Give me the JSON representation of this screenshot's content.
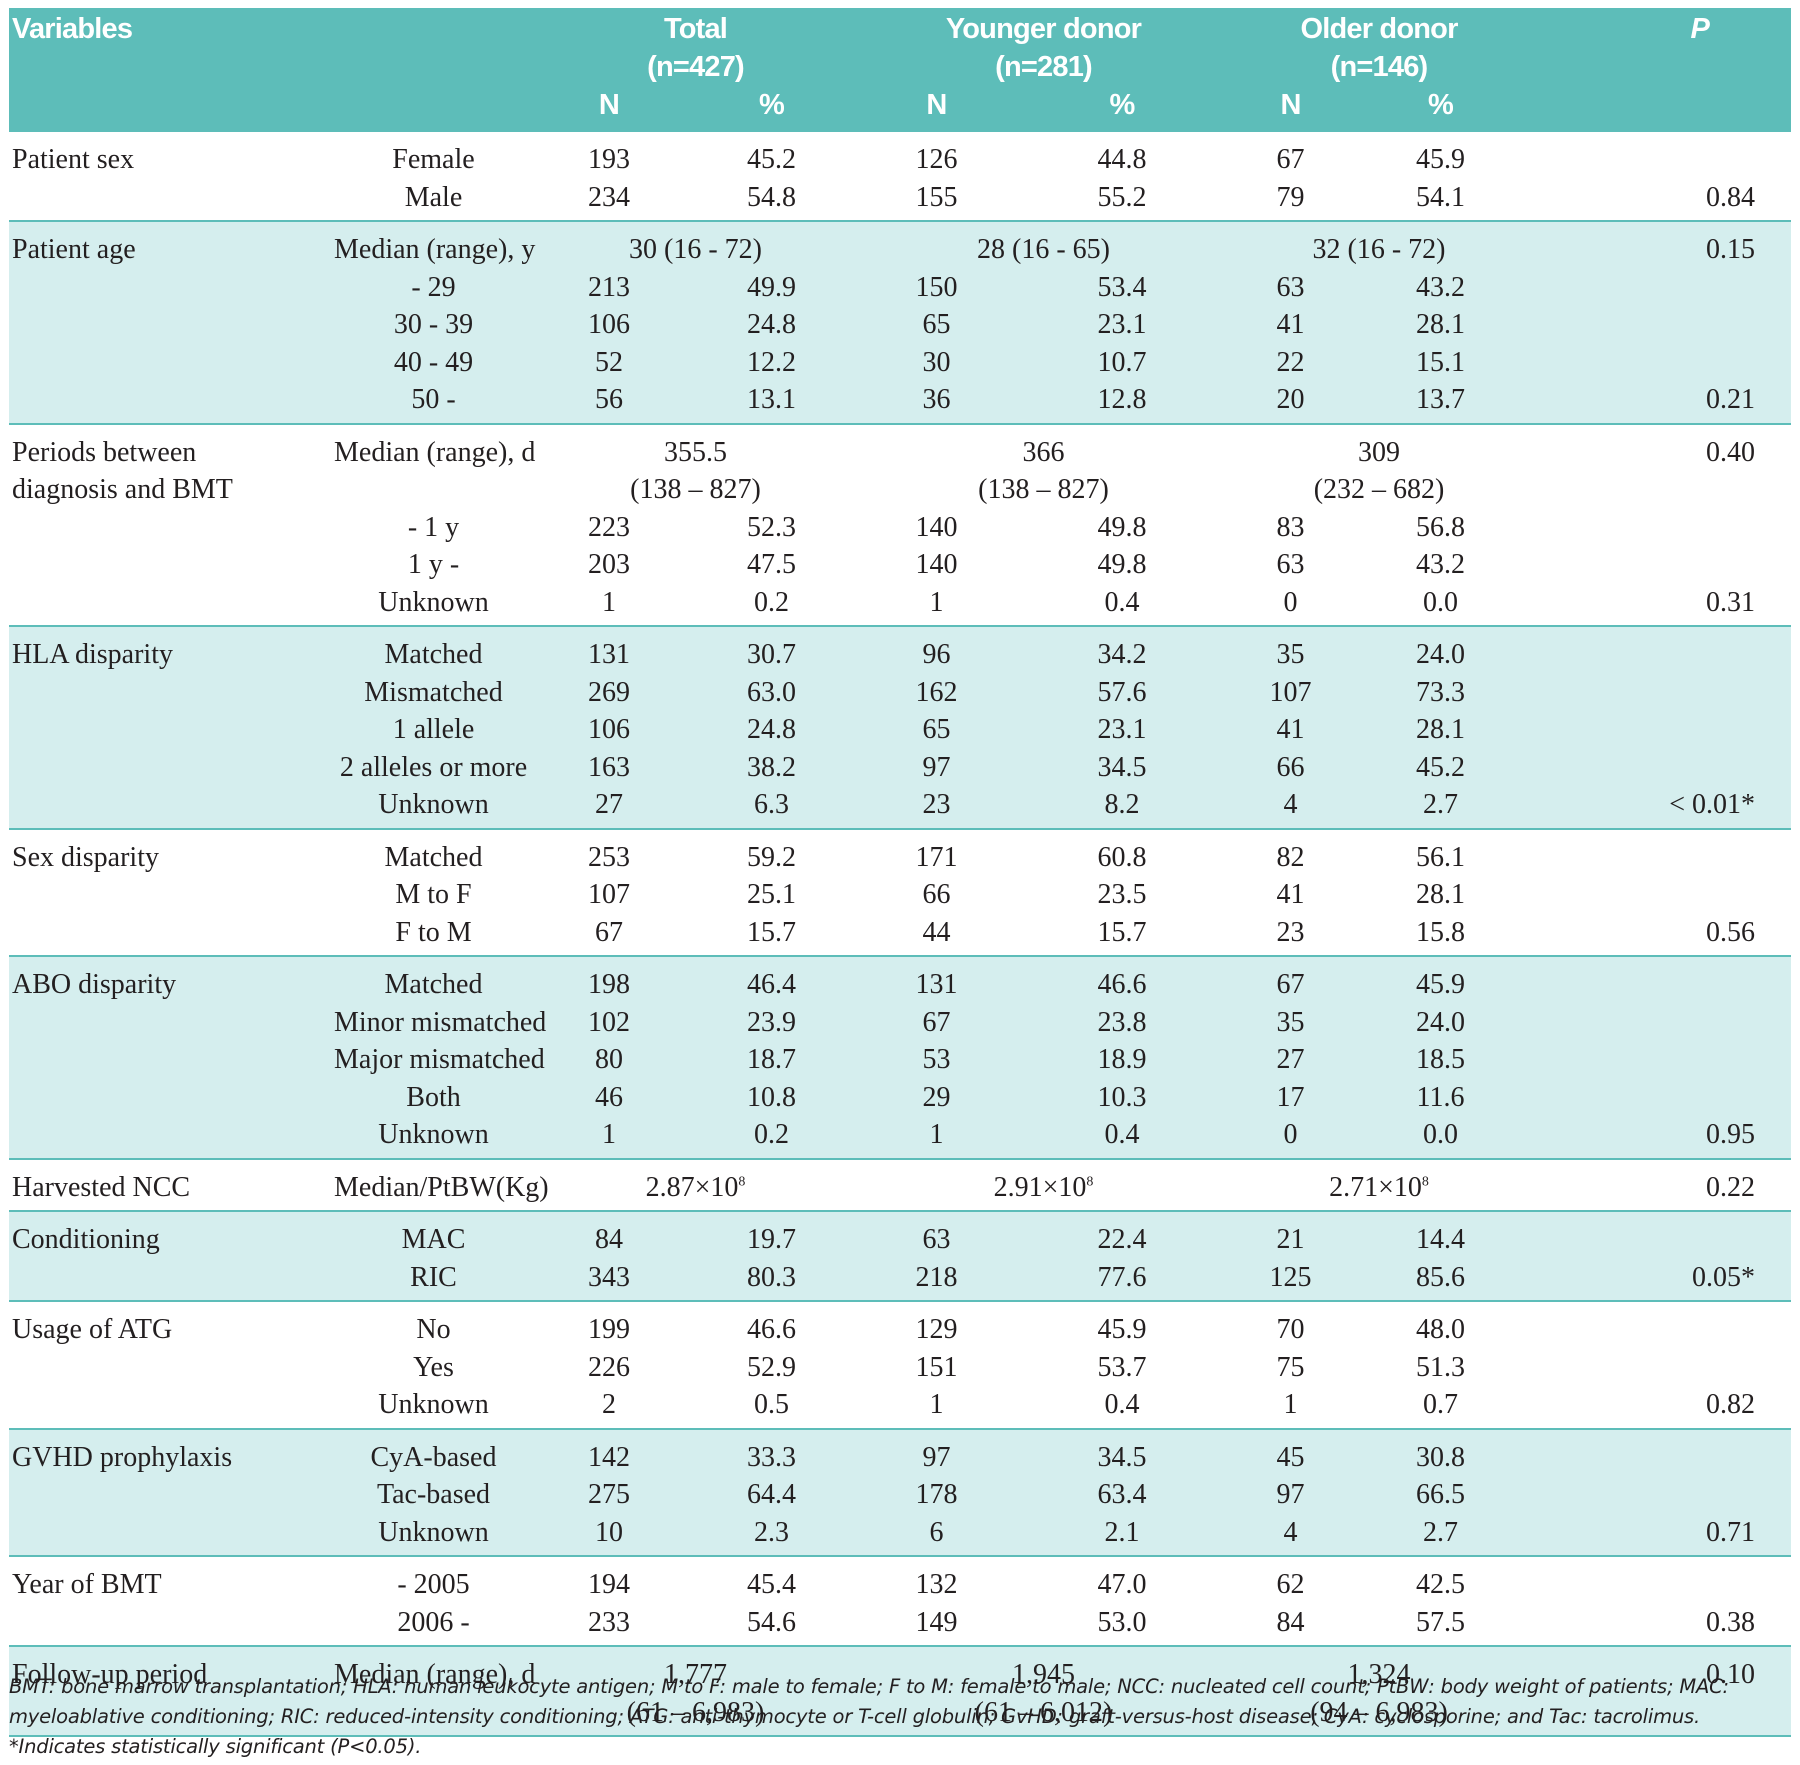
{
  "header": {
    "variables": "Variables",
    "groups": [
      {
        "name": "Total",
        "n": "(n=427)"
      },
      {
        "name": "Younger donor",
        "n": "(n=281)"
      },
      {
        "name": "Older donor",
        "n": "(n=146)"
      }
    ],
    "p": "P",
    "n_label": "N",
    "pct_label": "%"
  },
  "groups": [
    {
      "variable": "Patient sex",
      "shade": false,
      "rows": [
        {
          "cat": "Female",
          "t_n": "193",
          "t_p": "45.2",
          "y_n": "126",
          "y_p": "44.8",
          "o_n": "67",
          "o_p": "45.9",
          "p": ""
        },
        {
          "cat": "Male",
          "t_n": "234",
          "t_p": "54.8",
          "y_n": "155",
          "y_p": "55.2",
          "o_n": "79",
          "o_p": "54.1",
          "p": "0.84"
        }
      ]
    },
    {
      "variable": "Patient age",
      "shade": true,
      "median": {
        "cat": "Median (range), y",
        "t": "30 (16 - 72)",
        "y": "28 (16 - 65)",
        "o": "32 (16 - 72)",
        "p": "0.15"
      },
      "rows": [
        {
          "cat": "- 29",
          "t_n": "213",
          "t_p": "49.9",
          "y_n": "150",
          "y_p": "53.4",
          "o_n": "63",
          "o_p": "43.2",
          "p": ""
        },
        {
          "cat": "30 - 39",
          "t_n": "106",
          "t_p": "24.8",
          "y_n": "65",
          "y_p": "23.1",
          "o_n": "41",
          "o_p": "28.1",
          "p": ""
        },
        {
          "cat": "40 - 49",
          "t_n": "52",
          "t_p": "12.2",
          "y_n": "30",
          "y_p": "10.7",
          "o_n": "22",
          "o_p": "15.1",
          "p": ""
        },
        {
          "cat": "50 -",
          "t_n": "56",
          "t_p": "13.1",
          "y_n": "36",
          "y_p": "12.8",
          "o_n": "20",
          "o_p": "13.7",
          "p": "0.21"
        }
      ]
    },
    {
      "variable": "Periods between",
      "variable2": "diagnosis and BMT",
      "shade": false,
      "median": {
        "cat": "Median (range), d",
        "t": "355.5",
        "t2": "(138 – 827)",
        "y": "366",
        "y2": "(138 – 827)",
        "o": "309",
        "o2": "(232 – 682)",
        "p": "0.40"
      },
      "rows": [
        {
          "cat": "- 1 y",
          "t_n": "223",
          "t_p": "52.3",
          "y_n": "140",
          "y_p": "49.8",
          "o_n": "83",
          "o_p": "56.8",
          "p": ""
        },
        {
          "cat": "1 y -",
          "t_n": "203",
          "t_p": "47.5",
          "y_n": "140",
          "y_p": "49.8",
          "o_n": "63",
          "o_p": "43.2",
          "p": ""
        },
        {
          "cat": "Unknown",
          "t_n": "1",
          "t_p": "0.2",
          "y_n": "1",
          "y_p": "0.4",
          "o_n": "0",
          "o_p": "0.0",
          "p": "0.31"
        }
      ]
    },
    {
      "variable": "HLA disparity",
      "shade": true,
      "rows": [
        {
          "cat": "Matched",
          "t_n": "131",
          "t_p": "30.7",
          "y_n": "96",
          "y_p": "34.2",
          "o_n": "35",
          "o_p": "24.0",
          "p": ""
        },
        {
          "cat": "Mismatched",
          "t_n": "269",
          "t_p": "63.0",
          "y_n": "162",
          "y_p": "57.6",
          "o_n": "107",
          "o_p": "73.3",
          "p": ""
        },
        {
          "cat": "1 allele",
          "t_n": "106",
          "t_p": "24.8",
          "y_n": "65",
          "y_p": "23.1",
          "o_n": "41",
          "o_p": "28.1",
          "p": ""
        },
        {
          "cat": "2 alleles or more",
          "t_n": "163",
          "t_p": "38.2",
          "y_n": "97",
          "y_p": "34.5",
          "o_n": "66",
          "o_p": "45.2",
          "p": ""
        },
        {
          "cat": "Unknown",
          "t_n": "27",
          "t_p": "6.3",
          "y_n": "23",
          "y_p": "8.2",
          "o_n": "4",
          "o_p": "2.7",
          "p": "< 0.01*"
        }
      ]
    },
    {
      "variable": "Sex disparity",
      "shade": false,
      "rows": [
        {
          "cat": "Matched",
          "t_n": "253",
          "t_p": "59.2",
          "y_n": "171",
          "y_p": "60.8",
          "o_n": "82",
          "o_p": "56.1",
          "p": ""
        },
        {
          "cat": "M to F",
          "t_n": "107",
          "t_p": "25.1",
          "y_n": "66",
          "y_p": "23.5",
          "o_n": "41",
          "o_p": "28.1",
          "p": ""
        },
        {
          "cat": "F to M",
          "t_n": "67",
          "t_p": "15.7",
          "y_n": "44",
          "y_p": "15.7",
          "o_n": "23",
          "o_p": "15.8",
          "p": "0.56"
        }
      ]
    },
    {
      "variable": "ABO disparity",
      "shade": true,
      "rows": [
        {
          "cat": "Matched",
          "t_n": "198",
          "t_p": "46.4",
          "y_n": "131",
          "y_p": "46.6",
          "o_n": "67",
          "o_p": "45.9",
          "p": ""
        },
        {
          "cat": "Minor mismatched",
          "t_n": "102",
          "t_p": "23.9",
          "y_n": "67",
          "y_p": "23.8",
          "o_n": "35",
          "o_p": "24.0",
          "p": ""
        },
        {
          "cat": "Major mismatched",
          "t_n": "80",
          "t_p": "18.7",
          "y_n": "53",
          "y_p": "18.9",
          "o_n": "27",
          "o_p": "18.5",
          "p": ""
        },
        {
          "cat": "Both",
          "t_n": "46",
          "t_p": "10.8",
          "y_n": "29",
          "y_p": "10.3",
          "o_n": "17",
          "o_p": "11.6",
          "p": ""
        },
        {
          "cat": "Unknown",
          "t_n": "1",
          "t_p": "0.2",
          "y_n": "1",
          "y_p": "0.4",
          "o_n": "0",
          "o_p": "0.0",
          "p": "0.95"
        }
      ]
    },
    {
      "variable": "Harvested NCC",
      "shade": false,
      "median": {
        "cat": "Median/PtBW(Kg)",
        "t": "2.87×10",
        "t_sup": "8",
        "y": "2.91×10",
        "y_sup": "8",
        "o": "2.71×10",
        "o_sup": "8",
        "p": "0.22"
      },
      "rows": []
    },
    {
      "variable": "Conditioning",
      "shade": true,
      "rows": [
        {
          "cat": "MAC",
          "t_n": "84",
          "t_p": "19.7",
          "y_n": "63",
          "y_p": "22.4",
          "o_n": "21",
          "o_p": "14.4",
          "p": ""
        },
        {
          "cat": "RIC",
          "t_n": "343",
          "t_p": "80.3",
          "y_n": "218",
          "y_p": "77.6",
          "o_n": "125",
          "o_p": "85.6",
          "p": "0.05*"
        }
      ]
    },
    {
      "variable": "Usage of ATG",
      "shade": false,
      "rows": [
        {
          "cat": "No",
          "t_n": "199",
          "t_p": "46.6",
          "y_n": "129",
          "y_p": "45.9",
          "o_n": "70",
          "o_p": "48.0",
          "p": ""
        },
        {
          "cat": "Yes",
          "t_n": "226",
          "t_p": "52.9",
          "y_n": "151",
          "y_p": "53.7",
          "o_n": "75",
          "o_p": "51.3",
          "p": ""
        },
        {
          "cat": "Unknown",
          "t_n": "2",
          "t_p": "0.5",
          "y_n": "1",
          "y_p": "0.4",
          "o_n": "1",
          "o_p": "0.7",
          "p": "0.82"
        }
      ]
    },
    {
      "variable": "GVHD prophylaxis",
      "shade": true,
      "rows": [
        {
          "cat": "CyA-based",
          "t_n": "142",
          "t_p": "33.3",
          "y_n": "97",
          "y_p": "34.5",
          "o_n": "45",
          "o_p": "30.8",
          "p": ""
        },
        {
          "cat": "Tac-based",
          "t_n": "275",
          "t_p": "64.4",
          "y_n": "178",
          "y_p": "63.4",
          "o_n": "97",
          "o_p": "66.5",
          "p": ""
        },
        {
          "cat": "Unknown",
          "t_n": "10",
          "t_p": "2.3",
          "y_n": "6",
          "y_p": "2.1",
          "o_n": "4",
          "o_p": "2.7",
          "p": "0.71"
        }
      ]
    },
    {
      "variable": "Year of BMT",
      "shade": false,
      "rows": [
        {
          "cat": "- 2005",
          "t_n": "194",
          "t_p": "45.4",
          "y_n": "132",
          "y_p": "47.0",
          "o_n": "62",
          "o_p": "42.5",
          "p": ""
        },
        {
          "cat": "2006 -",
          "t_n": "233",
          "t_p": "54.6",
          "y_n": "149",
          "y_p": "53.0",
          "o_n": "84",
          "o_p": "57.5",
          "p": "0.38"
        }
      ]
    },
    {
      "variable": "Follow-up period",
      "shade": true,
      "median": {
        "cat": "Median (range), d",
        "t": "1,777",
        "t2": "(61 – 6,983)",
        "y": "1,945",
        "y2": "(61 – 6,012)",
        "o": "1,324",
        "o2": "(94 – 6,983)",
        "p": "0.10"
      },
      "rows": []
    }
  ],
  "footnote": {
    "line1": "BMT: bone marrow transplantation; HLA: human leukocyte antigen; M to F: male to female; F to M: female to male; NCC: nucleated cell count; PtBW: body weight of patients; MAC:",
    "line2": "myeloablative conditioning; RIC: reduced-intensity conditioning; ATG: anti-thymocyte or T-cell globulin; GvHD: graft-versus-host disease; CyA: cyclosporine; and Tac: tacrolimus.",
    "line3": "*Indicates statistically significant (P<0.05)."
  }
}
